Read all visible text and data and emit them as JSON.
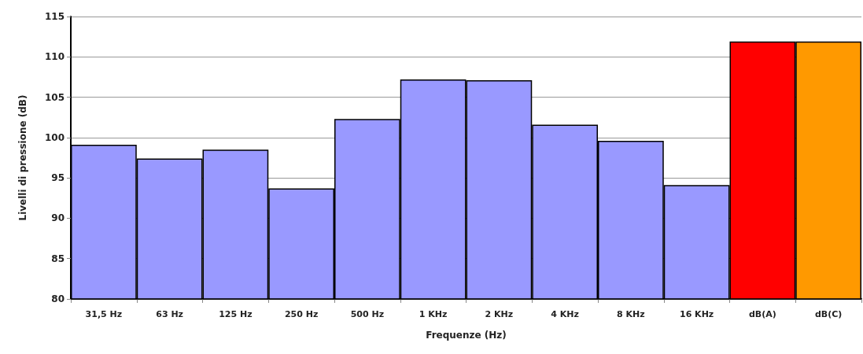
{
  "chart_data": {
    "type": "bar",
    "xlabel": "Frequenze (Hz)",
    "ylabel": "Livelli di pressione (dB)",
    "categories": [
      "31,5 Hz",
      "63 Hz",
      "125 Hz",
      "250 Hz",
      "500 Hz",
      "1 KHz",
      "2 KHz",
      "4 KHz",
      "8 KHz",
      "16 KHz",
      "dB(A)",
      "dB(C)"
    ],
    "values": [
      99.1,
      97.4,
      98.5,
      93.7,
      102.3,
      107.2,
      107.1,
      101.6,
      99.6,
      94.1,
      111.9,
      111.9
    ],
    "colors": [
      "#9999ff",
      "#9999ff",
      "#9999ff",
      "#9999ff",
      "#9999ff",
      "#9999ff",
      "#9999ff",
      "#9999ff",
      "#9999ff",
      "#9999ff",
      "#ff0000",
      "#ff9900"
    ],
    "ylim": [
      80,
      115
    ],
    "yticks": [
      80,
      85,
      90,
      95,
      100,
      105,
      110,
      115
    ],
    "grid": "y"
  }
}
